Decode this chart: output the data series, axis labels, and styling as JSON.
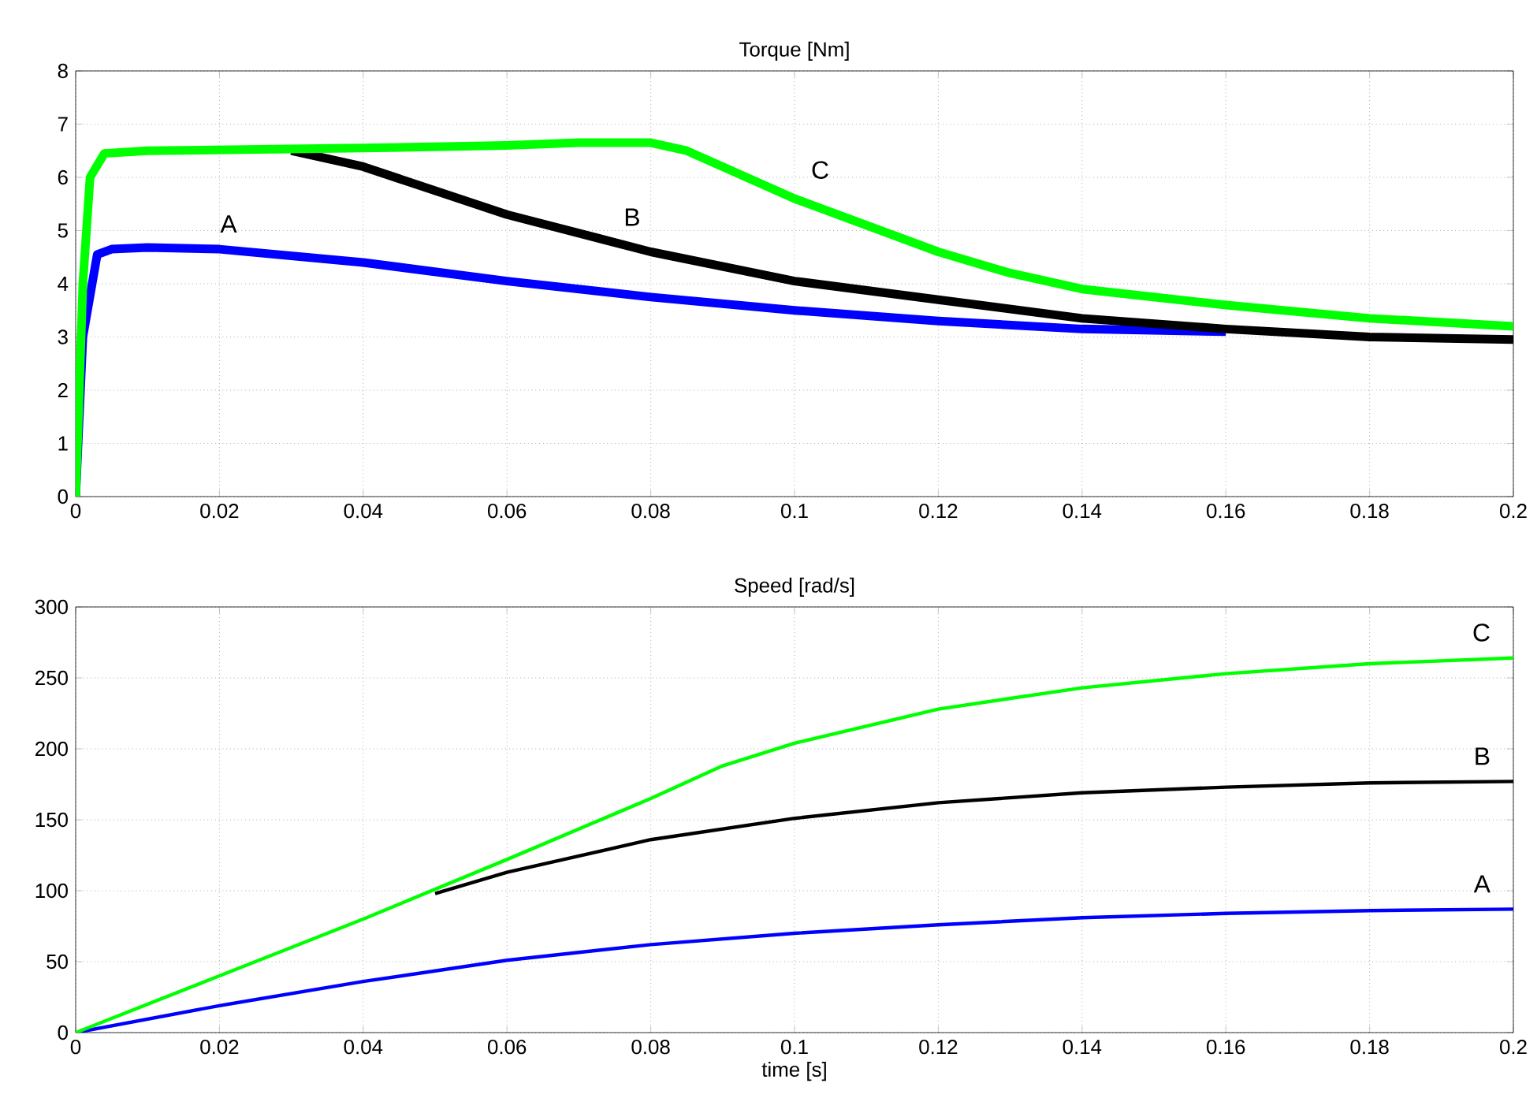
{
  "chart_data": [
    {
      "type": "line",
      "title": "Torque [Nm]",
      "xlim": [
        0,
        0.2
      ],
      "ylim": [
        0,
        8
      ],
      "xticks": [
        0,
        0.02,
        0.04,
        0.06,
        0.08,
        0.1,
        0.12,
        0.14,
        0.16,
        0.18,
        0.2
      ],
      "yticks": [
        0,
        1,
        2,
        3,
        4,
        5,
        6,
        7,
        8
      ],
      "grid": true,
      "series": [
        {
          "name": "A",
          "color": "#0000ff",
          "x": [
            0,
            0.001,
            0.003,
            0.005,
            0.01,
            0.02,
            0.04,
            0.06,
            0.08,
            0.1,
            0.12,
            0.14,
            0.16
          ],
          "values": [
            0,
            3,
            4.55,
            4.65,
            4.68,
            4.65,
            4.4,
            4.05,
            3.75,
            3.5,
            3.3,
            3.15,
            3.1
          ]
        },
        {
          "name": "B",
          "color": "#000000",
          "x": [
            0.03,
            0.04,
            0.06,
            0.08,
            0.1,
            0.12,
            0.14,
            0.16,
            0.18,
            0.2
          ],
          "values": [
            6.5,
            6.2,
            5.3,
            4.6,
            4.05,
            3.7,
            3.35,
            3.15,
            3.0,
            2.95
          ]
        },
        {
          "name": "C",
          "color": "#00ff00",
          "x": [
            0,
            0.001,
            0.002,
            0.004,
            0.01,
            0.04,
            0.06,
            0.07,
            0.08,
            0.085,
            0.09,
            0.1,
            0.11,
            0.12,
            0.13,
            0.14,
            0.16,
            0.18,
            0.2
          ],
          "values": [
            0,
            4,
            6,
            6.45,
            6.5,
            6.55,
            6.6,
            6.65,
            6.65,
            6.5,
            6.2,
            5.6,
            5.1,
            4.6,
            4.2,
            3.9,
            3.6,
            3.35,
            3.2
          ]
        }
      ]
    },
    {
      "type": "line",
      "title": "Speed [rad/s]",
      "xlabel": "time [s]",
      "xlim": [
        0,
        0.2
      ],
      "ylim": [
        0,
        300
      ],
      "xticks": [
        0,
        0.02,
        0.04,
        0.06,
        0.08,
        0.1,
        0.12,
        0.14,
        0.16,
        0.18,
        0.2
      ],
      "yticks": [
        0,
        50,
        100,
        150,
        200,
        250,
        300
      ],
      "grid": true,
      "series": [
        {
          "name": "A",
          "color": "#0000ff",
          "x": [
            0,
            0.02,
            0.04,
            0.06,
            0.08,
            0.1,
            0.12,
            0.14,
            0.16,
            0.18,
            0.2
          ],
          "values": [
            0,
            19,
            36,
            51,
            62,
            70,
            76,
            81,
            84,
            86,
            87
          ]
        },
        {
          "name": "B",
          "color": "#000000",
          "x": [
            0.05,
            0.06,
            0.08,
            0.1,
            0.12,
            0.14,
            0.16,
            0.18,
            0.2
          ],
          "values": [
            98,
            113,
            136,
            151,
            162,
            169,
            173,
            176,
            177
          ]
        },
        {
          "name": "C",
          "color": "#00ff00",
          "x": [
            0,
            0.02,
            0.04,
            0.06,
            0.08,
            0.09,
            0.1,
            0.12,
            0.14,
            0.16,
            0.18,
            0.2
          ],
          "values": [
            0,
            40,
            80,
            122,
            165,
            188,
            204,
            228,
            243,
            253,
            260,
            264
          ]
        }
      ]
    }
  ]
}
